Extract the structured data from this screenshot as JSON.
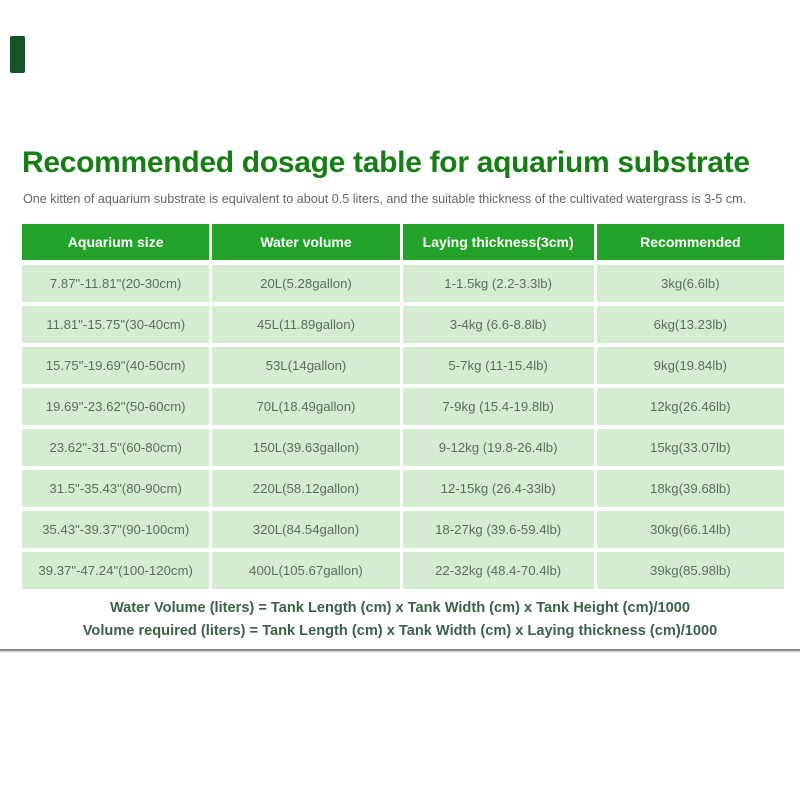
{
  "title": "Recommended dosage table for aquarium substrate",
  "subtitle": "One kitten of aquarium substrate is equivalent to about 0.5 liters, and the suitable thickness of the cultivated watergrass is 3-5 cm.",
  "colors": {
    "title_green": "#177d17",
    "header_bg": "#22a228",
    "row_bg": "#d5ecd3",
    "cell_text": "#5e6c60",
    "footer_text": "#3c6149",
    "brand_mark": "#15522a",
    "divider": "#8b8b8b"
  },
  "table": {
    "headers": [
      "Aquarium size",
      "Water volume",
      "Laying thickness(3cm)",
      "Recommended"
    ],
    "rows": [
      [
        "7.87\"-11.81\"(20-30cm)",
        "20L(5.28gallon)",
        "1-1.5kg (2.2-3.3lb)",
        "3kg(6.6lb)"
      ],
      [
        "11.81\"-15.75\"(30-40cm)",
        "45L(11.89gallon)",
        "3-4kg (6.6-8.8lb)",
        "6kg(13.23lb)"
      ],
      [
        "15.75\"-19.69\"(40-50cm)",
        "53L(14gallon)",
        "5-7kg (11-15.4lb)",
        "9kg(19.84lb)"
      ],
      [
        "19.69\"-23.62\"(50-60cm)",
        "70L(18.49gallon)",
        "7-9kg (15.4-19.8lb)",
        "12kg(26.46lb)"
      ],
      [
        "23.62\"-31.5\"(60-80cm)",
        "150L(39.63gallon)",
        "9-12kg (19.8-26.4lb)",
        "15kg(33.07lb)"
      ],
      [
        "31.5\"-35.43\"(80-90cm)",
        "220L(58.12gallon)",
        "12-15kg (26.4-33lb)",
        "18kg(39.68lb)"
      ],
      [
        "35.43\"-39.37\"(90-100cm)",
        "320L(84.54gallon)",
        "18-27kg (39.6-59.4lb)",
        "30kg(66.14lb)"
      ],
      [
        "39.37\"-47.24\"(100-120cm)",
        "400L(105.67gallon)",
        "22-32kg (48.4-70.4lb)",
        "39kg(85.98lb)"
      ]
    ]
  },
  "footer": {
    "line1": "Water Volume (liters) = Tank Length (cm) x Tank Width (cm) x Tank Height (cm)/1000",
    "line2": "Volume required (liters) = Tank Length (cm) x Tank Width (cm) x Laying thickness (cm)/1000"
  }
}
